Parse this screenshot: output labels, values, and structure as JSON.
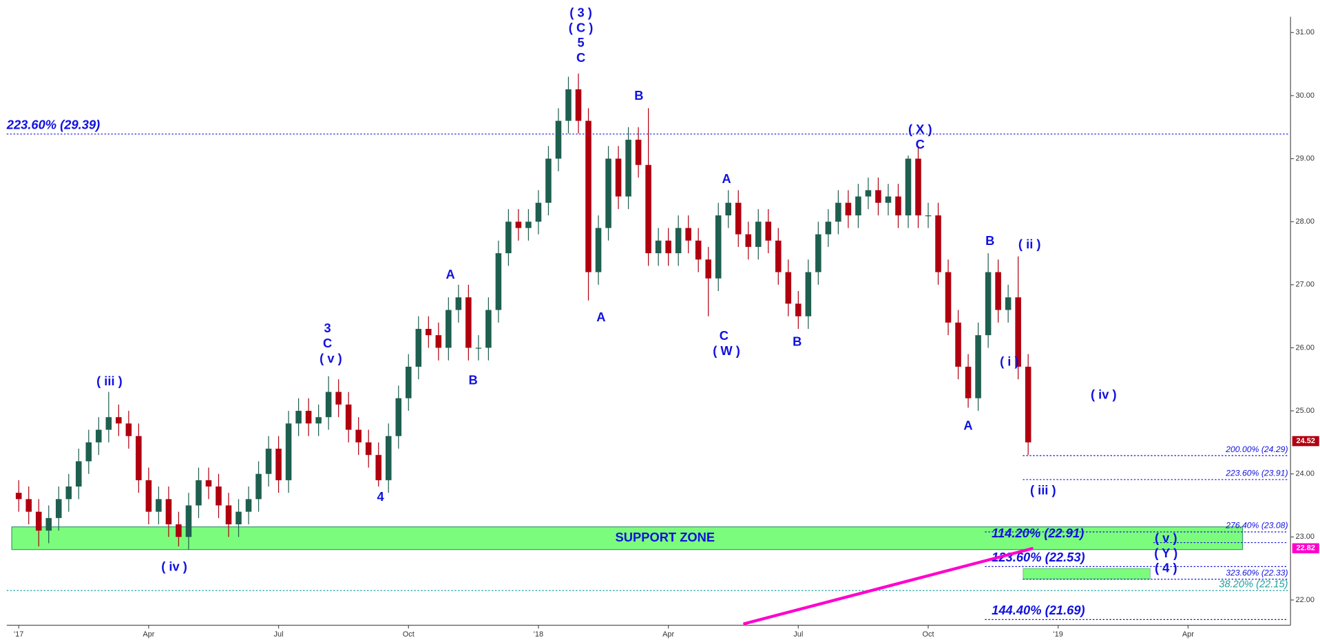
{
  "chart_data": {
    "type": "candlestick",
    "x": [
      0,
      1,
      2,
      3,
      4,
      5,
      6,
      7,
      8,
      9,
      10,
      11,
      12,
      13,
      14,
      15,
      16,
      17,
      18,
      19,
      20,
      21,
      22,
      23,
      24,
      25,
      26,
      27,
      28,
      29,
      30,
      31,
      32,
      33,
      34,
      35,
      36,
      37,
      38,
      39,
      40,
      41,
      42,
      43,
      44,
      45,
      46,
      47,
      48,
      49,
      50,
      51,
      52,
      53,
      54,
      55,
      56,
      57,
      58,
      59,
      60,
      61,
      62,
      63,
      64,
      65,
      66,
      67,
      68,
      69,
      70,
      71,
      72,
      73,
      74,
      75,
      76,
      77,
      78,
      79,
      80,
      81,
      82,
      83,
      84,
      85,
      86,
      87,
      88,
      89,
      90,
      91,
      92,
      93,
      94,
      95,
      96,
      97,
      98,
      99,
      100,
      101
    ],
    "open": [
      23.7,
      23.6,
      23.4,
      23.1,
      23.3,
      23.6,
      23.8,
      24.2,
      24.5,
      24.7,
      24.9,
      24.8,
      24.6,
      23.9,
      23.4,
      23.6,
      23.2,
      23.0,
      23.5,
      23.9,
      23.8,
      23.5,
      23.2,
      23.4,
      23.6,
      24.0,
      24.4,
      23.9,
      24.8,
      25.0,
      24.8,
      24.9,
      25.3,
      25.1,
      24.7,
      24.5,
      24.3,
      23.9,
      24.6,
      25.2,
      25.7,
      26.3,
      26.2,
      26.0,
      26.6,
      26.8,
      26.0,
      26.0,
      26.6,
      27.5,
      28.0,
      27.9,
      28.0,
      28.3,
      29.0,
      29.6,
      30.1,
      29.6,
      27.2,
      27.9,
      29.0,
      28.4,
      29.3,
      28.9,
      27.5,
      27.7,
      27.5,
      27.9,
      27.7,
      27.4,
      27.1,
      28.1,
      28.3,
      27.8,
      27.6,
      28.0,
      27.7,
      27.2,
      26.7,
      26.5,
      27.2,
      27.8,
      28.0,
      28.3,
      28.1,
      28.4,
      28.5,
      28.3,
      28.4,
      28.1,
      29.0,
      28.1,
      28.1,
      27.2,
      26.4,
      25.7,
      25.2,
      26.2,
      27.2,
      26.6,
      26.8,
      25.7
    ],
    "high": [
      23.9,
      23.8,
      23.6,
      23.5,
      23.8,
      24.0,
      24.4,
      24.7,
      24.9,
      25.3,
      25.1,
      25.0,
      24.8,
      24.1,
      23.8,
      23.8,
      23.4,
      23.7,
      24.1,
      24.1,
      24.0,
      23.7,
      23.6,
      23.8,
      24.2,
      24.6,
      24.6,
      25.0,
      25.2,
      25.2,
      25.1,
      25.55,
      25.5,
      25.3,
      24.9,
      24.7,
      24.5,
      24.8,
      25.4,
      25.9,
      26.5,
      26.5,
      26.4,
      26.8,
      27.0,
      27.0,
      26.2,
      26.8,
      27.7,
      28.2,
      28.2,
      28.2,
      28.5,
      29.2,
      29.8,
      30.3,
      30.35,
      29.8,
      28.1,
      29.2,
      29.2,
      29.5,
      29.5,
      29.8,
      27.9,
      27.9,
      28.1,
      28.1,
      27.9,
      27.6,
      28.3,
      28.5,
      28.5,
      28.0,
      28.2,
      28.2,
      27.9,
      27.4,
      26.9,
      27.4,
      28.0,
      28.2,
      28.5,
      28.5,
      28.6,
      28.7,
      28.7,
      28.6,
      28.6,
      29.05,
      29.2,
      28.3,
      28.3,
      27.4,
      26.6,
      25.9,
      26.4,
      27.5,
      27.4,
      27.0,
      27.45,
      25.9
    ],
    "low": [
      23.4,
      23.2,
      22.85,
      22.9,
      23.1,
      23.4,
      23.6,
      24.0,
      24.3,
      24.5,
      24.6,
      24.4,
      23.7,
      23.2,
      23.2,
      23.0,
      22.85,
      22.8,
      23.3,
      23.6,
      23.3,
      23.0,
      23.0,
      23.2,
      23.4,
      23.8,
      23.7,
      23.7,
      24.6,
      24.6,
      24.6,
      24.7,
      24.9,
      24.5,
      24.3,
      24.1,
      23.8,
      23.7,
      24.4,
      25.0,
      25.5,
      26.0,
      25.8,
      25.8,
      26.4,
      25.8,
      25.8,
      25.8,
      26.4,
      27.3,
      27.7,
      27.7,
      27.8,
      28.1,
      28.8,
      29.4,
      29.4,
      26.75,
      27.0,
      27.7,
      28.2,
      28.2,
      28.7,
      27.3,
      27.3,
      27.3,
      27.3,
      27.5,
      27.2,
      26.5,
      26.9,
      27.9,
      27.6,
      27.4,
      27.4,
      27.5,
      27.0,
      26.5,
      26.3,
      26.3,
      27.0,
      27.6,
      27.8,
      27.9,
      27.9,
      28.2,
      28.1,
      28.1,
      27.9,
      27.9,
      27.9,
      27.9,
      27.0,
      26.2,
      25.5,
      25.05,
      25.0,
      26.0,
      26.4,
      26.4,
      25.5,
      24.3
    ],
    "close": [
      23.6,
      23.4,
      23.1,
      23.3,
      23.6,
      23.8,
      24.2,
      24.5,
      24.7,
      24.9,
      24.8,
      24.6,
      23.9,
      23.4,
      23.6,
      23.2,
      23.0,
      23.5,
      23.9,
      23.8,
      23.5,
      23.2,
      23.4,
      23.6,
      24.0,
      24.4,
      23.9,
      24.8,
      25.0,
      24.8,
      24.9,
      25.3,
      25.1,
      24.7,
      24.5,
      24.3,
      23.9,
      24.6,
      25.2,
      25.7,
      26.3,
      26.2,
      26.0,
      26.6,
      26.8,
      26.0,
      26.0,
      26.6,
      27.5,
      28.0,
      27.9,
      28.0,
      28.3,
      29.0,
      29.6,
      30.1,
      29.6,
      27.2,
      27.9,
      29.0,
      28.4,
      29.3,
      28.9,
      27.5,
      27.7,
      27.5,
      27.9,
      27.7,
      27.4,
      27.1,
      28.1,
      28.3,
      27.8,
      27.6,
      28.0,
      27.7,
      27.2,
      26.7,
      26.5,
      27.2,
      27.8,
      28.0,
      28.3,
      28.1,
      28.4,
      28.5,
      28.3,
      28.4,
      28.1,
      29.0,
      28.1,
      28.1,
      27.2,
      26.4,
      25.7,
      25.2,
      26.2,
      27.2,
      26.6,
      26.8,
      25.7,
      24.5
    ],
    "up_color": "#1f5f4f",
    "down_color": "#b00010",
    "xlim": [
      -1.2,
      127
    ],
    "ylim": [
      21.6,
      31.25
    ],
    "xticks": [
      {
        "value": 0,
        "label": "'17"
      },
      {
        "value": 13,
        "label": "Apr"
      },
      {
        "value": 26,
        "label": "Jul"
      },
      {
        "value": 39,
        "label": "Oct"
      },
      {
        "value": 52,
        "label": "'18"
      },
      {
        "value": 65,
        "label": "Apr"
      },
      {
        "value": 78,
        "label": "Jul"
      },
      {
        "value": 91,
        "label": "Oct"
      },
      {
        "value": 104,
        "label": "'19"
      },
      {
        "value": 117,
        "label": "Apr"
      }
    ],
    "yticks": [
      {
        "value": 22,
        "label": "22.00"
      },
      {
        "value": 23,
        "label": "23.00"
      },
      {
        "value": 24,
        "label": "24.00"
      },
      {
        "value": 25,
        "label": "25.00"
      },
      {
        "value": 26,
        "label": "26.00"
      },
      {
        "value": 27,
        "label": "27.00"
      },
      {
        "value": 28,
        "label": "28.00"
      },
      {
        "value": 29,
        "label": "29.00"
      },
      {
        "value": 30,
        "label": "30.00"
      },
      {
        "value": 31,
        "label": "31.00"
      }
    ],
    "levels": [
      {
        "value": 29.39,
        "label": "223.60% (29.39)"
      },
      {
        "value": 24.29,
        "label": "200.00% (24.29)"
      },
      {
        "value": 23.91,
        "label": "223.60% (23.91)"
      },
      {
        "value": 23.08,
        "label": "276.40% (23.08)"
      },
      {
        "value": 22.91,
        "label": "114.20% (22.91)"
      },
      {
        "value": 22.53,
        "label": "123.60% (22.53)"
      },
      {
        "value": 22.33,
        "label": "323.60% (22.33)"
      },
      {
        "value": 22.15,
        "label": "38.20% (22.15)"
      },
      {
        "value": 21.69,
        "label": "144.40% (21.69)"
      }
    ],
    "support_zone": {
      "label": "SUPPORT ZONE",
      "range": [
        22.8,
        23.16
      ]
    },
    "target_zone": {
      "range": [
        22.33,
        22.5
      ],
      "x": [
        100.5,
        113.2
      ]
    },
    "trendline": {
      "x": [
        72.5,
        101.5
      ],
      "values": [
        21.62,
        22.82
      ],
      "color": "#ff00cc"
    },
    "last_price": 24.52,
    "trendline_price": 22.82,
    "annotations": [
      "( 3 )",
      "( C )",
      "5",
      "C",
      "( iii )",
      "( iv )",
      "3",
      "C",
      "( v )",
      "4",
      "A",
      "B",
      "A",
      "B",
      "A",
      "C",
      "( W )",
      "B",
      "( X )",
      "C",
      "A",
      "B",
      "( ii )",
      "( i )",
      "( iv )",
      "( iii )",
      "( v )",
      "( Y )",
      "( 4 )"
    ]
  }
}
